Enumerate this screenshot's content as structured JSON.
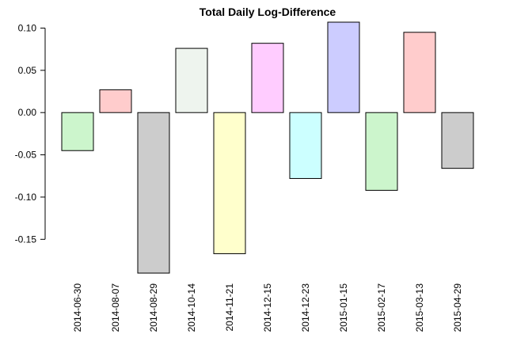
{
  "chart_data": {
    "type": "bar",
    "title": "Total Daily Log-Difference",
    "xlabel": "",
    "ylabel": "",
    "categories": [
      "2014-06-30",
      "2014-08-07",
      "2014-08-29",
      "2014-10-14",
      "2014-11-21",
      "2014-12-15",
      "2014-12-23",
      "2015-01-15",
      "2015-02-17",
      "2015-03-13",
      "2015-04-29"
    ],
    "values": [
      -0.045,
      0.027,
      -0.19,
      0.076,
      -0.167,
      0.082,
      -0.078,
      0.107,
      -0.092,
      0.095,
      -0.066
    ],
    "colors": [
      "#ccf5cc",
      "#ffcccc",
      "#cccccc",
      "#eef4ee",
      "#ffffcc",
      "#ffccff",
      "#ccffff",
      "#ccccff",
      "#ccf5cc",
      "#ffcccc",
      "#cccccc"
    ],
    "yticks": [
      -0.15,
      -0.1,
      -0.05,
      0.0,
      0.05,
      0.1
    ],
    "ytick_labels": [
      "-0.15",
      "-0.10",
      "-0.05",
      "0.00",
      "0.05",
      "0.10"
    ],
    "ylim": [
      -0.19,
      0.107
    ],
    "grid": false,
    "legend": "none"
  }
}
